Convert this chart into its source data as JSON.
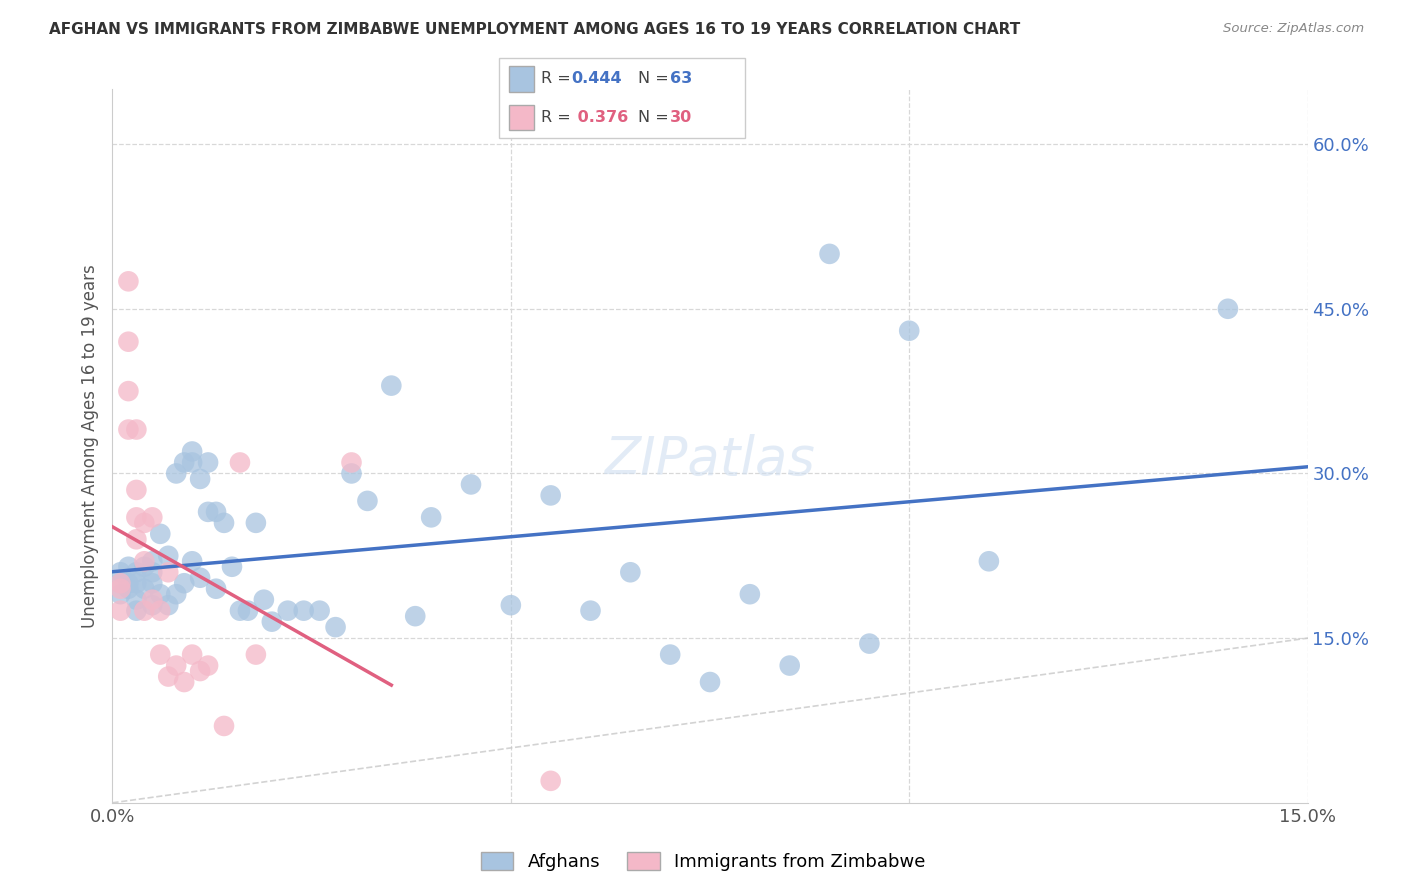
{
  "title": "AFGHAN VS IMMIGRANTS FROM ZIMBABWE UNEMPLOYMENT AMONG AGES 16 TO 19 YEARS CORRELATION CHART",
  "source": "Source: ZipAtlas.com",
  "ylabel": "Unemployment Among Ages 16 to 19 years",
  "xlim": [
    0.0,
    0.15
  ],
  "ylim": [
    0.0,
    0.65
  ],
  "legend_blue_label": "Afghans",
  "legend_pink_label": "Immigrants from Zimbabwe",
  "r_blue": "0.444",
  "n_blue": "63",
  "r_pink": "0.376",
  "n_pink": "30",
  "blue_color": "#a8c4e0",
  "blue_line_color": "#4472c4",
  "pink_color": "#f4b8c8",
  "pink_line_color": "#e06080",
  "diag_color": "#c8c8c8",
  "background_color": "#ffffff",
  "grid_color": "#d8d8d8",
  "ytick_positions": [
    0.15,
    0.3,
    0.45,
    0.6
  ],
  "ytick_labels": [
    "15.0%",
    "30.0%",
    "45.0%",
    "60.0%"
  ],
  "xtick_positions": [
    0.0,
    0.05,
    0.1,
    0.15
  ],
  "xtick_labels": [
    "0.0%",
    "",
    "",
    "15.0%"
  ],
  "blue_scatter_x": [
    0.001,
    0.001,
    0.001,
    0.002,
    0.002,
    0.002,
    0.003,
    0.003,
    0.003,
    0.003,
    0.004,
    0.004,
    0.005,
    0.005,
    0.005,
    0.005,
    0.006,
    0.006,
    0.007,
    0.007,
    0.008,
    0.008,
    0.009,
    0.009,
    0.01,
    0.01,
    0.01,
    0.011,
    0.011,
    0.012,
    0.012,
    0.013,
    0.013,
    0.014,
    0.015,
    0.016,
    0.017,
    0.018,
    0.019,
    0.02,
    0.022,
    0.024,
    0.026,
    0.028,
    0.03,
    0.032,
    0.035,
    0.038,
    0.04,
    0.045,
    0.05,
    0.055,
    0.06,
    0.065,
    0.07,
    0.075,
    0.08,
    0.085,
    0.09,
    0.095,
    0.1,
    0.11,
    0.14
  ],
  "blue_scatter_y": [
    0.2,
    0.21,
    0.19,
    0.2,
    0.215,
    0.195,
    0.21,
    0.2,
    0.185,
    0.175,
    0.215,
    0.195,
    0.22,
    0.21,
    0.2,
    0.18,
    0.245,
    0.19,
    0.225,
    0.18,
    0.3,
    0.19,
    0.31,
    0.2,
    0.32,
    0.31,
    0.22,
    0.295,
    0.205,
    0.31,
    0.265,
    0.265,
    0.195,
    0.255,
    0.215,
    0.175,
    0.175,
    0.255,
    0.185,
    0.165,
    0.175,
    0.175,
    0.175,
    0.16,
    0.3,
    0.275,
    0.38,
    0.17,
    0.26,
    0.29,
    0.18,
    0.28,
    0.175,
    0.21,
    0.135,
    0.11,
    0.19,
    0.125,
    0.5,
    0.145,
    0.43,
    0.22,
    0.45
  ],
  "pink_scatter_x": [
    0.001,
    0.001,
    0.001,
    0.002,
    0.002,
    0.002,
    0.002,
    0.003,
    0.003,
    0.003,
    0.003,
    0.004,
    0.004,
    0.004,
    0.005,
    0.005,
    0.006,
    0.006,
    0.007,
    0.007,
    0.008,
    0.009,
    0.01,
    0.011,
    0.012,
    0.014,
    0.016,
    0.018,
    0.03,
    0.055
  ],
  "pink_scatter_y": [
    0.2,
    0.195,
    0.175,
    0.475,
    0.42,
    0.375,
    0.34,
    0.34,
    0.285,
    0.26,
    0.24,
    0.255,
    0.22,
    0.175,
    0.26,
    0.185,
    0.175,
    0.135,
    0.21,
    0.115,
    0.125,
    0.11,
    0.135,
    0.12,
    0.125,
    0.07,
    0.31,
    0.135,
    0.31,
    0.02
  ]
}
